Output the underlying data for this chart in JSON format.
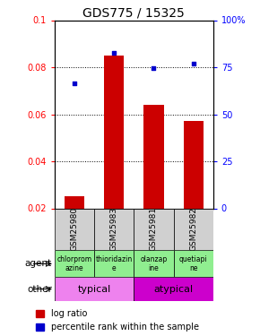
{
  "title": "GDS775 / 15325",
  "samples": [
    "GSM25980",
    "GSM25983",
    "GSM25981",
    "GSM25982"
  ],
  "log_ratio": [
    0.025,
    0.085,
    0.064,
    0.057
  ],
  "percentile_rank": [
    0.073,
    0.086,
    0.0795,
    0.0815
  ],
  "ylim_left": [
    0.02,
    0.1
  ],
  "ylim_right": [
    0,
    100
  ],
  "yticks_left": [
    0.02,
    0.04,
    0.06,
    0.08,
    0.1
  ],
  "yticks_right": [
    0,
    25,
    50,
    75,
    100
  ],
  "ytick_labels_left": [
    "0.02",
    "0.04",
    "0.06",
    "0.08",
    "0.1"
  ],
  "ytick_labels_right": [
    "0",
    "25",
    "50",
    "75",
    "100%"
  ],
  "bar_color": "#cc0000",
  "scatter_color": "#0000cc",
  "agent_labels": [
    "chlorprom\nazine",
    "thioridazin\ne",
    "olanzap\nine",
    "quetiapi\nne"
  ],
  "agent_bg": "#90ee90",
  "other_groups": [
    [
      "typical",
      2
    ],
    [
      "atypical",
      2
    ]
  ],
  "other_colors": [
    "#ee82ee",
    "#cc00cc"
  ],
  "bar_width": 0.5,
  "title_fontsize": 10,
  "tick_fontsize": 7,
  "label_fontsize": 7.5,
  "legend_fontsize": 7,
  "sample_label_fontsize": 6.5,
  "agent_fontsize": 5.5,
  "other_fontsize": 8
}
